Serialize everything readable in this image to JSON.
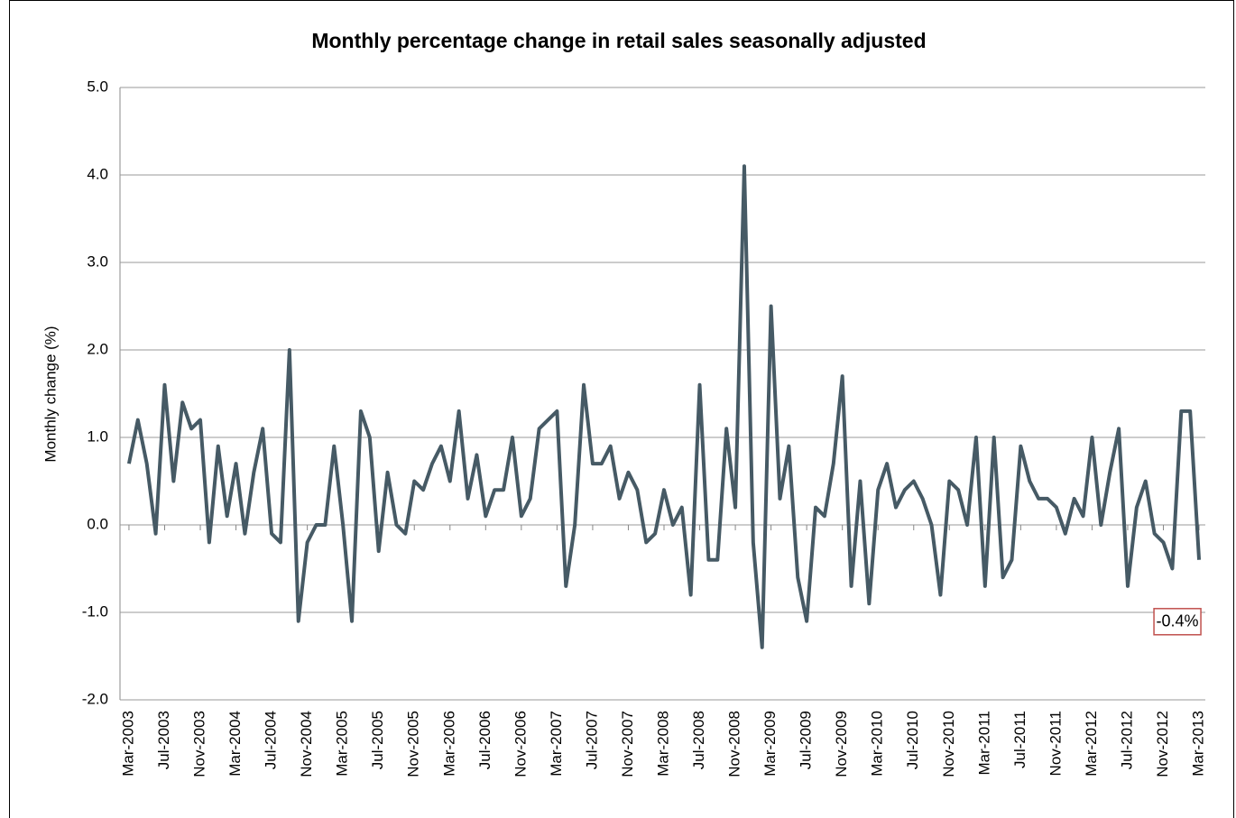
{
  "chart_data": {
    "type": "line",
    "title": "Monthly percentage change in retail sales seasonally adjusted",
    "y_label": "Monthly change (%)",
    "categories": [
      "Mar-2003",
      null,
      null,
      null,
      "Jul-2003",
      null,
      null,
      null,
      "Nov-2003",
      null,
      null,
      null,
      "Mar-2004",
      null,
      null,
      null,
      "Jul-2004",
      null,
      null,
      null,
      "Nov-2004",
      null,
      null,
      null,
      "Mar-2005",
      null,
      null,
      null,
      "Jul-2005",
      null,
      null,
      null,
      "Nov-2005",
      null,
      null,
      null,
      "Mar-2006",
      null,
      null,
      null,
      "Jul-2006",
      null,
      null,
      null,
      "Nov-2006",
      null,
      null,
      null,
      "Mar-2007",
      null,
      null,
      null,
      "Jul-2007",
      null,
      null,
      null,
      "Nov-2007",
      null,
      null,
      null,
      "Mar-2008",
      null,
      null,
      null,
      "Jul-2008",
      null,
      null,
      null,
      "Nov-2008",
      null,
      null,
      null,
      "Mar-2009",
      null,
      null,
      null,
      "Jul-2009",
      null,
      null,
      null,
      "Nov-2009",
      null,
      null,
      null,
      "Mar-2010",
      null,
      null,
      null,
      "Jul-2010",
      null,
      null,
      null,
      "Nov-2010",
      null,
      null,
      null,
      "Mar-2011",
      null,
      null,
      null,
      "Jul-2011",
      null,
      null,
      null,
      "Nov-2011",
      null,
      null,
      null,
      "Mar-2012",
      null,
      null,
      null,
      "Jul-2012",
      null,
      null,
      null,
      "Nov-2012",
      null,
      null,
      null,
      "Mar-2013"
    ],
    "series": [
      {
        "name": "Monthly change",
        "color": "#465a65",
        "values": [
          0.7,
          1.2,
          0.7,
          -0.1,
          1.6,
          0.5,
          1.4,
          1.1,
          1.2,
          -0.2,
          0.9,
          0.1,
          0.7,
          -0.1,
          0.6,
          1.1,
          -0.1,
          -0.2,
          2.0,
          -1.1,
          -0.2,
          0.0,
          0.0,
          0.9,
          0.0,
          -1.1,
          1.3,
          1.0,
          -0.3,
          0.6,
          0.0,
          -0.1,
          0.5,
          0.4,
          0.7,
          0.9,
          0.5,
          1.3,
          0.3,
          0.8,
          0.1,
          0.4,
          0.4,
          1.0,
          0.1,
          0.3,
          1.1,
          1.2,
          1.3,
          -0.7,
          0.0,
          1.6,
          0.7,
          0.7,
          0.9,
          0.3,
          0.6,
          0.4,
          -0.2,
          -0.1,
          0.4,
          0.0,
          0.2,
          -0.8,
          1.6,
          -0.4,
          -0.4,
          1.1,
          0.2,
          4.1,
          -0.2,
          -1.4,
          2.5,
          0.3,
          0.9,
          -0.6,
          -1.1,
          0.2,
          0.1,
          0.7,
          1.7,
          -0.7,
          0.5,
          -0.9,
          0.4,
          0.7,
          0.2,
          0.4,
          0.5,
          0.3,
          0.0,
          -0.8,
          0.5,
          0.4,
          0.0,
          1.0,
          -0.7,
          1.0,
          -0.6,
          -0.4,
          0.9,
          0.5,
          0.3,
          0.3,
          0.2,
          -0.1,
          0.3,
          0.1,
          1.0,
          0.0,
          0.6,
          1.1,
          -0.7,
          0.2,
          0.5,
          -0.1,
          -0.2,
          -0.5,
          1.3,
          1.3,
          -0.4
        ],
        "value_labels": [
          null,
          null,
          null,
          null,
          null,
          null,
          null,
          null,
          null,
          null,
          null,
          null,
          null,
          null,
          null,
          null,
          null,
          null,
          null,
          null,
          null,
          null,
          null,
          null,
          null,
          null,
          null,
          null,
          null,
          null,
          null,
          null,
          null,
          null,
          null,
          null,
          null,
          null,
          null,
          null,
          null,
          null,
          null,
          null,
          null,
          null,
          null,
          null,
          null,
          null,
          null,
          null,
          null,
          null,
          null,
          null,
          null,
          null,
          null,
          null,
          null,
          null,
          null,
          null,
          null,
          null,
          null,
          null,
          null,
          null,
          null,
          null,
          null,
          null,
          null,
          null,
          null,
          null,
          null,
          null,
          null,
          null,
          null,
          null,
          null,
          null,
          null,
          null,
          null,
          null,
          null,
          null,
          null,
          null,
          null,
          null,
          null,
          null,
          null,
          null,
          null,
          null,
          null,
          null,
          null,
          null,
          null,
          null,
          null,
          null,
          null,
          null,
          null,
          null,
          null,
          null,
          null,
          null,
          null,
          null,
          "-0.4%"
        ]
      }
    ],
    "ylim": [
      -2,
      5
    ],
    "yticks": [
      {
        "value": -2,
        "label": "-2.0"
      },
      {
        "value": -1,
        "label": "-1.0"
      },
      {
        "value": 0,
        "label": "0.0"
      },
      {
        "value": 1,
        "label": "1.0"
      },
      {
        "value": 2,
        "label": "2.0"
      },
      {
        "value": 3,
        "label": "3.0"
      },
      {
        "value": 4,
        "label": "4.0"
      },
      {
        "value": 5,
        "label": "5.0"
      }
    ],
    "grid": true
  }
}
